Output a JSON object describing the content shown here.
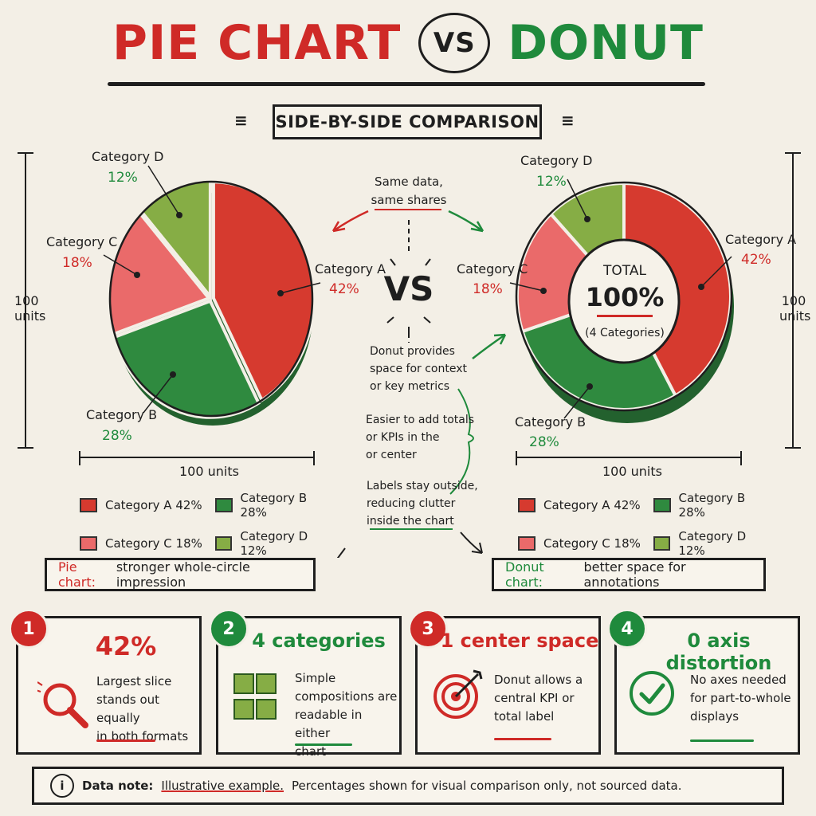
{
  "header": {
    "title_left": "PIE CHART",
    "title_vs": "VS",
    "title_right": "DONUT",
    "subtitle": "SIDE-BY-SIDE COMPARISON"
  },
  "center": {
    "same_data_line1": "Same data,",
    "same_data_line2": "same shares",
    "vs": "VS",
    "note1": [
      "Donut provides",
      "space for context",
      "or key metrics"
    ],
    "note2": [
      "Easier to add totals",
      "or KPIs in the",
      "or  center"
    ],
    "note3": [
      "Labels stay outside,",
      "reducing clutter",
      "inside the chart"
    ]
  },
  "pie_axes": {
    "height_label": [
      "100",
      "units"
    ],
    "width_label": "100 units"
  },
  "donut_axes": {
    "height_label": [
      "100",
      "units"
    ],
    "width_label": "100 units"
  },
  "donut_center": {
    "label": "TOTAL",
    "value": "100%",
    "sub": "(4 Categories)"
  },
  "chart_data": [
    {
      "type": "pie",
      "categories": [
        "Category A",
        "Category B",
        "Category C",
        "Category D"
      ],
      "values": [
        42,
        28,
        18,
        12
      ],
      "labels": [
        "42%",
        "28%",
        "18%",
        "12%"
      ],
      "colors": [
        "#d63a2f",
        "#2f8a3f",
        "#ea6a6a",
        "#86ad45"
      ],
      "xlabel": "100 units",
      "ylabel": "100 units"
    },
    {
      "type": "pie",
      "donut": true,
      "categories": [
        "Category A",
        "Category B",
        "Category C",
        "Category D"
      ],
      "values": [
        42,
        28,
        18,
        12
      ],
      "labels": [
        "42%",
        "28%",
        "18%",
        "12%"
      ],
      "colors": [
        "#d63a2f",
        "#2f8a3f",
        "#ea6a6a",
        "#86ad45"
      ],
      "xlabel": "100 units",
      "ylabel": "100 units"
    }
  ],
  "legend": [
    {
      "label": "Category A 42%",
      "color": "#d63a2f"
    },
    {
      "label": "Category B 28%",
      "color": "#2f8a3f"
    },
    {
      "label": "Category C 18%",
      "color": "#ea6a6a"
    },
    {
      "label": "Category D 12%",
      "color": "#86ad45"
    }
  ],
  "summary": {
    "pie_prefix": "Pie chart:",
    "pie_text": "stronger whole-circle impression",
    "donut_prefix": "Donut chart:",
    "donut_text": "better space for annotations"
  },
  "cards": [
    {
      "number": "1",
      "headline": "42%",
      "text": [
        "Largest slice",
        "stands out equally",
        "in both formats"
      ],
      "icon": "magnifier-icon",
      "accent": "#cf2a27"
    },
    {
      "number": "2",
      "headline": "4 categories",
      "text": [
        "Simple",
        "compositions are",
        "readable in either",
        "chart"
      ],
      "icon": "grid-icon",
      "accent": "#1f8a3c"
    },
    {
      "number": "3",
      "headline": "1 center space",
      "text": [
        "Donut allows a",
        "central KPI or",
        "total label"
      ],
      "icon": "target-icon",
      "accent": "#cf2a27"
    },
    {
      "number": "4",
      "headline": "0 axis distortion",
      "text": [
        "No axes needed",
        "for part-to-whole",
        "displays"
      ],
      "icon": "checkmark-icon",
      "accent": "#1f8a3c"
    }
  ],
  "note": {
    "icon": "info-icon",
    "label": "Data note:",
    "emphasis": "Illustrative example.",
    "text": "Percentages shown for visual comparison only, not sourced data."
  }
}
